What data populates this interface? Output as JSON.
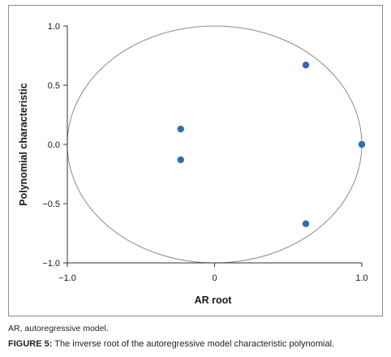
{
  "chart_data": {
    "type": "scatter",
    "xlabel": "AR root",
    "ylabel": "Polynomial characteristic",
    "xlim": [
      -1.0,
      1.0
    ],
    "ylim": [
      -1.0,
      1.0
    ],
    "x_ticks": [
      "−1.0",
      "0",
      "1.0"
    ],
    "y_ticks": [
      "1.0",
      "0.5",
      "0.0",
      "−0.5",
      "−1.0"
    ],
    "x_tick_values": [
      -1.0,
      0,
      1.0
    ],
    "y_tick_values": [
      1.0,
      0.5,
      0.0,
      -0.5,
      -1.0
    ],
    "grid": false,
    "unit_circle": true,
    "points": [
      {
        "x": 0.62,
        "y": 0.67
      },
      {
        "x": -0.23,
        "y": 0.13
      },
      {
        "x": 1.0,
        "y": 0.0
      },
      {
        "x": -0.23,
        "y": -0.13
      },
      {
        "x": 0.62,
        "y": -0.67
      }
    ],
    "point_color": "#2e6db4",
    "circle_color": "#8a8a8a"
  },
  "note": "AR, autoregressive model.",
  "caption": {
    "label": "FIGURE 5:",
    "text": " The inverse root of the autoregressive model characteristic polynomial."
  }
}
